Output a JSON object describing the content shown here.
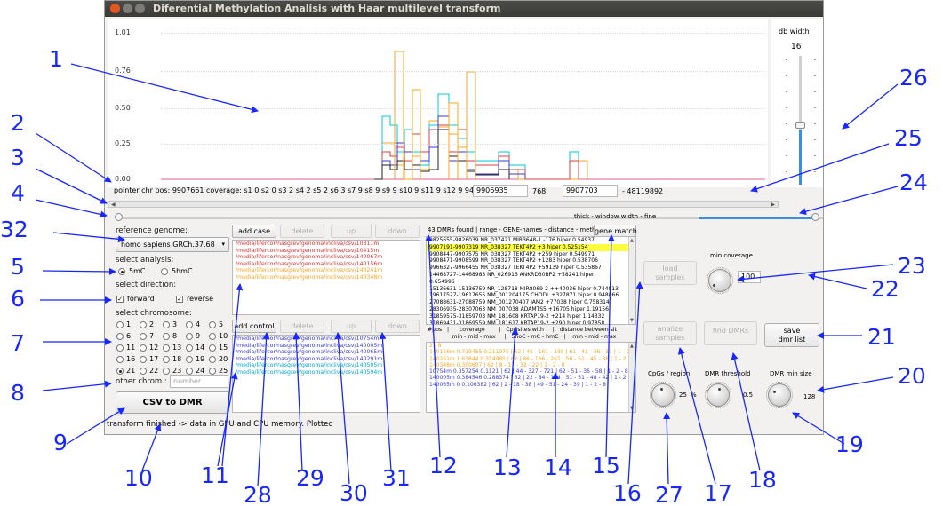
{
  "window": {
    "title": "Diferential Methylation Analisis with Haar multilevel transform"
  },
  "plot": {
    "yticks": [
      "1.01",
      "0.76",
      "0.50",
      "0.25",
      "0.00"
    ],
    "series_colors": [
      "#f5a623",
      "#00c8d4",
      "#d44040",
      "#3a3ad6",
      "#222222",
      "#ff66cc"
    ],
    "highlight_color": "#fffe3c",
    "accent": "#3b8ede"
  },
  "db_width": {
    "label": "db width",
    "value": "16"
  },
  "pointer": {
    "text": "pointer chr pos:  9907661 coverage:  s1 0 s2 0 s3 2 s4 2 s5 2 s6 3 s7 9 s8 9 s9 9 s10 9 s11 9 s12 9  9411191 -",
    "start": "9906935",
    "width": "768",
    "end": "9907703",
    "end_text": "- 48119892"
  },
  "scroll": {
    "thick_label": "thick - window width - fine"
  },
  "left": {
    "reference_label": "reference genome:",
    "genome": "homo sapiens GRCh.37.68",
    "analysis_label": "select analysis:",
    "analysis_options": [
      "5mC",
      "5hmC"
    ],
    "direction_label": "select direction:",
    "directions": [
      "forward",
      "reverse"
    ],
    "chromosome_label": "select chromosome:",
    "chromosomes": [
      "1",
      "2",
      "3",
      "4",
      "5",
      "6",
      "7",
      "8",
      "9",
      "10",
      "11",
      "12",
      "13",
      "14",
      "15",
      "16",
      "17",
      "18",
      "19",
      "20",
      "21",
      "22",
      "23",
      "24",
      "25"
    ],
    "other_label": "other chrom.:",
    "other_placeholder": "number",
    "csv_button": "CSV to DMR",
    "status": "transform finished -> data in GPU and CPU memory. Plotted"
  },
  "cases": {
    "add_label": "add case",
    "delete_label": "delete",
    "up_label": "up",
    "down_label": "down",
    "files": [
      "/media/lifercor/nasgrev/genoma/incliva/csv/10311m",
      "/media/lifercor/nasgrev/genoma/incliva/csv/10415m",
      "/media/lifercor/nasgrev/genoma/incliva/csv/140067m",
      "/media/lifercor/nasgrev/genoma/incliva/csv/140156m",
      "/media/lifercor/nasgrev/genoma/incliva/csv/140241m",
      "/media/lifercor/nasgrev/genoma/incliva/csv/140348m"
    ],
    "file_colors": [
      "#e03030",
      "#e03030",
      "#e03030",
      "#e03030",
      "#f5a623",
      "#f5a623"
    ]
  },
  "controls": {
    "add_label": "add control",
    "delete_label": "delete",
    "up_label": "up",
    "down_label": "down",
    "files": [
      "/media/lifercor/nasgrev/genoma/incliva/csv/10754m",
      "/media/lifercor/nasgrev/genoma/incliva/csv/140005m",
      "/media/lifercor/nasgrev/genoma/incliva/csv/140065m",
      "/media/lifercor/nasgrev/genoma/incliva/csv/140291m",
      "/media/lifercor/nasgrev/genoma/incliva/csv/140505m",
      "/media/lifercor/nasgrev/genoma/incliva/csv/140594m"
    ],
    "file_colors": [
      "#3a3ad6",
      "#3a3ad6",
      "#3a3ad6",
      "#3a3ad6",
      "#00a8d4",
      "#00a8d4"
    ]
  },
  "dmr": {
    "count_text": "43 DMRs found | range - GENE-names - distance - methylat",
    "gene_match_label": "gene match",
    "selected_index": 1,
    "rows": [
      "9825655-9826039 NR_037421 MIR3648-1 -176 hiper 0.54937",
      "9907191-9907319 NR_038327 TEKT4P2 +3 hiper 0.525154",
      "9908447-9907575 NR_038327 TEKT4P2 +259 hiper 0.549971",
      "9908471-9908599 NR_038327 TEKT4P2 +1283 hiper 0.538706",
      "9966327-9966455 NR_038327 TEKT4P2 +59139 hiper 0.535867",
      "14468727-14468983 NR_026916 ANKRD30BP2 +58241 hiper",
      "0.654996",
      "15136631-15136759 NR_128718 MIR8069-2 ++40036 hiper 0.744813",
      "19617527-19617655 NM_001204175 CHODL +327871 hiper 0.948066",
      "27088631-27088759 NM_001270407 JAM2 +77038 hiper 0.758314",
      "28306935-28307063 NM_007038 ADAMTS5 +16705 hiper 1.19156",
      "31859575-31859703 NM_181608 KRTAP19-2 +214 hiper 1.14332",
      "31869431-31869559 NM_181617 KRTAP19-2 +290 hiper 0.97858"
    ],
    "header": "#pos   |      coverage        |   CpGsites with     |   distance between sit\n              min - mid - max     |   5hoC - mC - hmC   |    min - mid - max",
    "detail_rows": [
      "2 - 8",
      "140156m 0.719455 0.211975 | 62 | 45 - 161 - 338 | 61 - 41 - 36 - 51 | 1 - 2 - 8",
      "140261m 1.63844 0.314985 | 62 | 86 - 166 - 261 | 58 - 51 - 45 - 38 | 1 - 2 - 8",
      "140348m 0.300607 | 62 | 8 - 17 - 32 - 22 | 1 - 2 - 8",
      "10754m 0.357254 0.1121 | 62 | 44 - 327 - 721 | 62 - 51 - 36 - 58 | 1 - 2 - 8",
      "140005m 0.384546 0.288374 | 62 | 22 - 84 - 144 | 51 - 51 - 48 - 42 | 1 - 2 - 8",
      "140065m 0 0.106382 | 62 | 2 - 18 - 38 | 49 - 51 - 24 - 39 | 1 - 2 - 8"
    ],
    "detail_colors": [
      "#f5a623",
      "#f5a623",
      "#f5a623",
      "#f5a623",
      "#3a3ad6",
      "#3a3ad6",
      "#3a3ad6"
    ]
  },
  "right": {
    "load_label": "load\nsamples",
    "min_coverage_label": "min coverage",
    "min_coverage": "100",
    "save_label": "save\ndmr list",
    "analize_label": "analize\nsamples",
    "find_label": "find DMRs",
    "cpgs_label": "CpGs / region",
    "cpgs_value": "25",
    "cpgs_unit": "%",
    "threshold_label": "DMR threshold",
    "threshold_value": "0.5",
    "min_size_label": "DMR min size",
    "min_size_value": "128"
  },
  "annotations": [
    "1",
    "2",
    "3",
    "4",
    "5",
    "6",
    "7",
    "8",
    "9",
    "10",
    "11",
    "12",
    "13",
    "14",
    "15",
    "16",
    "17",
    "18",
    "19",
    "20",
    "21",
    "22",
    "23",
    "24",
    "25",
    "26",
    "27",
    "28",
    "29",
    "30",
    "31",
    "32"
  ]
}
